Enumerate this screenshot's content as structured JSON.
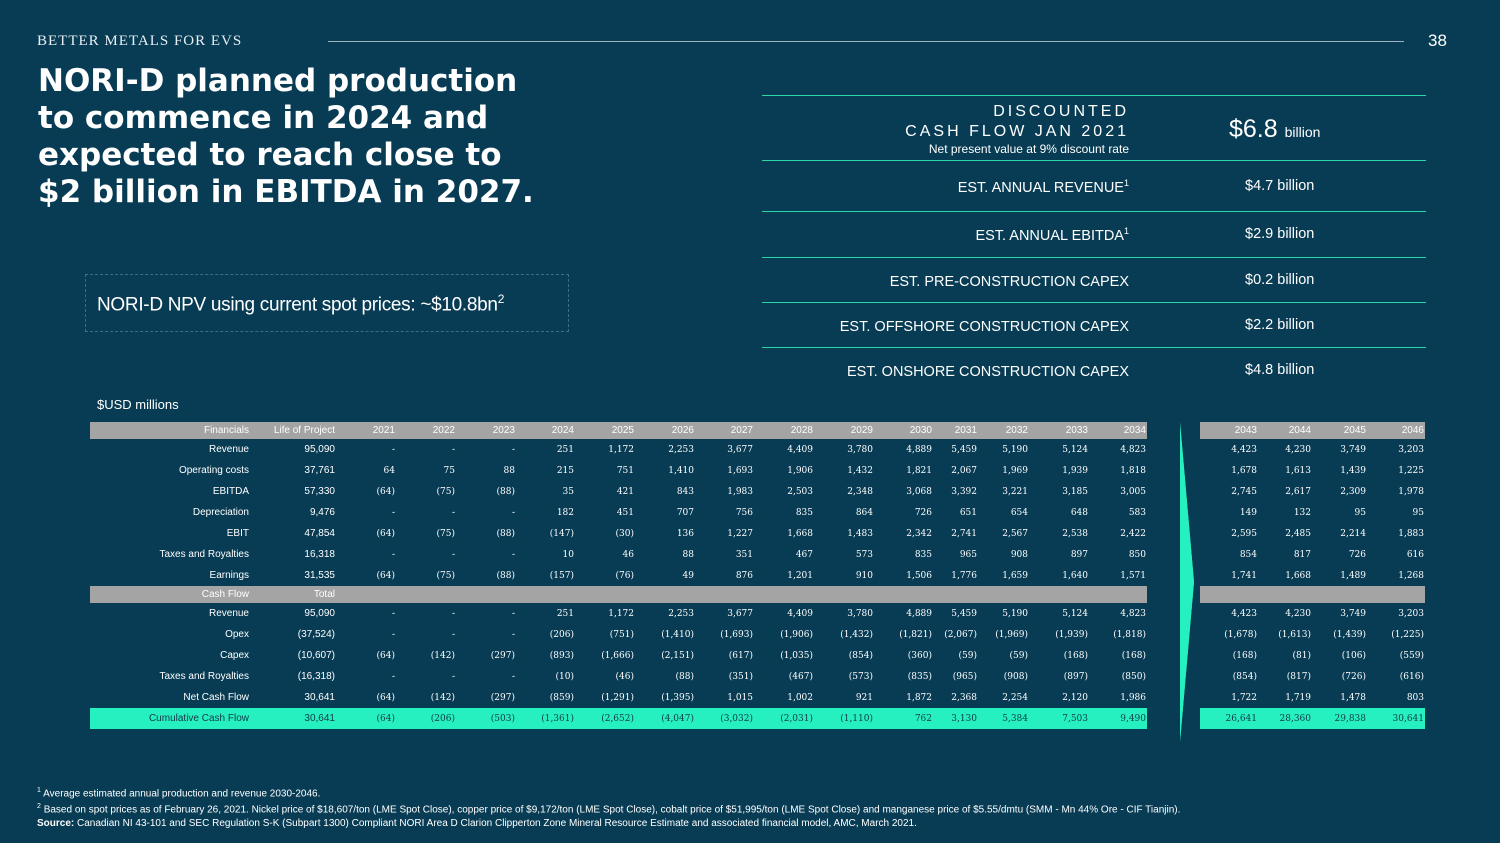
{
  "header": {
    "tagline": "BETTER METALS FOR EVS",
    "page_number": "38"
  },
  "headline": "NORI-D planned production to commence in 2024 and expected to reach close to $2 billion in EBITDA in 2027.",
  "npv_box": {
    "text": "NORI-D NPV using current spot prices: ~$10.8bn",
    "sup": "2"
  },
  "dcf": {
    "title_line1": "DISCOUNTED",
    "title_line2": "CASH FLOW JAN 2021",
    "subtitle": "Net present value at 9% discount rate",
    "value": "$6.8",
    "unit": "billion"
  },
  "metrics": [
    {
      "label": "EST. ANNUAL REVENUE",
      "sup": "1",
      "value": "$4.7 billion"
    },
    {
      "label": "EST. ANNUAL EBITDA",
      "sup": "1",
      "value": "$2.9 billion"
    },
    {
      "label": "EST. PRE-CONSTRUCTION CAPEX",
      "sup": "",
      "value": "$0.2 billion"
    },
    {
      "label": "EST. OFFSHORE CONSTRUCTION CAPEX",
      "sup": "",
      "value": "$2.2 billion"
    },
    {
      "label": "EST. ONSHORE CONSTRUCTION CAPEX",
      "sup": "",
      "value": "$4.8 billion"
    }
  ],
  "table": {
    "units_label": "$USD millions",
    "header1": [
      "Financials",
      "Life of Project",
      "2021",
      "2022",
      "2023",
      "2024",
      "2025",
      "2026",
      "2027",
      "2028",
      "2029",
      "2030",
      "2031",
      "2032",
      "2033",
      "2034",
      "2043",
      "2044",
      "2045",
      "2046"
    ],
    "financials": [
      [
        "Revenue",
        "95,090",
        "-",
        "-",
        "-",
        "251",
        "1,172",
        "2,253",
        "3,677",
        "4,409",
        "3,780",
        "4,889",
        "5,459",
        "5,190",
        "5,124",
        "4,823",
        "4,423",
        "4,230",
        "3,749",
        "3,203"
      ],
      [
        "Operating costs",
        "37,761",
        "64",
        "75",
        "88",
        "215",
        "751",
        "1,410",
        "1,693",
        "1,906",
        "1,432",
        "1,821",
        "2,067",
        "1,969",
        "1,939",
        "1,818",
        "1,678",
        "1,613",
        "1,439",
        "1,225"
      ],
      [
        "EBITDA",
        "57,330",
        "(64)",
        "(75)",
        "(88)",
        "35",
        "421",
        "843",
        "1,983",
        "2,503",
        "2,348",
        "3,068",
        "3,392",
        "3,221",
        "3,185",
        "3,005",
        "2,745",
        "2,617",
        "2,309",
        "1,978"
      ],
      [
        "Depreciation",
        "9,476",
        "-",
        "-",
        "-",
        "182",
        "451",
        "707",
        "756",
        "835",
        "864",
        "726",
        "651",
        "654",
        "648",
        "583",
        "149",
        "132",
        "95",
        "95"
      ],
      [
        "EBIT",
        "47,854",
        "(64)",
        "(75)",
        "(88)",
        "(147)",
        "(30)",
        "136",
        "1,227",
        "1,668",
        "1,483",
        "2,342",
        "2,741",
        "2,567",
        "2,538",
        "2,422",
        "2,595",
        "2,485",
        "2,214",
        "1,883"
      ],
      [
        "Taxes and Royalties",
        "16,318",
        "-",
        "-",
        "-",
        "10",
        "46",
        "88",
        "351",
        "467",
        "573",
        "835",
        "965",
        "908",
        "897",
        "850",
        "854",
        "817",
        "726",
        "616"
      ],
      [
        "Earnings",
        "31,535",
        "(64)",
        "(75)",
        "(88)",
        "(157)",
        "(76)",
        "49",
        "876",
        "1,201",
        "910",
        "1,506",
        "1,776",
        "1,659",
        "1,640",
        "1,571",
        "1,741",
        "1,668",
        "1,489",
        "1,268"
      ]
    ],
    "header2": [
      "Cash Flow",
      "Total"
    ],
    "cashflow": [
      [
        "Revenue",
        "95,090",
        "-",
        "-",
        "-",
        "251",
        "1,172",
        "2,253",
        "3,677",
        "4,409",
        "3,780",
        "4,889",
        "5,459",
        "5,190",
        "5,124",
        "4,823",
        "4,423",
        "4,230",
        "3,749",
        "3,203"
      ],
      [
        "Opex",
        "(37,524)",
        "-",
        "-",
        "-",
        "(206)",
        "(751)",
        "(1,410)",
        "(1,693)",
        "(1,906)",
        "(1,432)",
        "(1,821)",
        "(2,067)",
        "(1,969)",
        "(1,939)",
        "(1,818)",
        "(1,678)",
        "(1,613)",
        "(1,439)",
        "(1,225)"
      ],
      [
        "Capex",
        "(10,607)",
        "(64)",
        "(142)",
        "(297)",
        "(893)",
        "(1,666)",
        "(2,151)",
        "(617)",
        "(1,035)",
        "(854)",
        "(360)",
        "(59)",
        "(59)",
        "(168)",
        "(168)",
        "(168)",
        "(81)",
        "(106)",
        "(559)"
      ],
      [
        "Taxes and Royalties",
        "(16,318)",
        "-",
        "-",
        "-",
        "(10)",
        "(46)",
        "(88)",
        "(351)",
        "(467)",
        "(573)",
        "(835)",
        "(965)",
        "(908)",
        "(897)",
        "(850)",
        "(854)",
        "(817)",
        "(726)",
        "(616)"
      ],
      [
        "Net Cash Flow",
        "30,641",
        "(64)",
        "(142)",
        "(297)",
        "(859)",
        "(1,291)",
        "(1,395)",
        "1,015",
        "1,002",
        "921",
        "1,872",
        "2,368",
        "2,254",
        "2,120",
        "1,986",
        "1,722",
        "1,719",
        "1,478",
        "803"
      ]
    ],
    "cumulative": [
      "Cumulative Cash Flow",
      "30,641",
      "(64)",
      "(206)",
      "(503)",
      "(1,361)",
      "(2,652)",
      "(4,047)",
      "(3,032)",
      "(2,031)",
      "(1,110)",
      "762",
      "3,130",
      "5,384",
      "7,503",
      "9,490",
      "26,641",
      "28,360",
      "29,838",
      "30,641"
    ]
  },
  "footnotes": {
    "fn1_mark": "1",
    "fn1": "Average estimated annual production and revenue 2030-2046.",
    "fn2_mark": "2",
    "fn2": "Based on spot prices as of February 26, 2021. Nickel price of $18,607/ton (LME Spot Close), copper price of $9,172/ton (LME Spot Close), cobalt price of $51,995/ton (LME Spot Close) and manganese price of $5.55/dmtu (SMM - Mn 44% Ore - CIF Tianjin).",
    "source_label": "Source:",
    "source": "Canadian NI 43-101 and SEC Regulation S-K (Subpart 1300) Compliant NORI Area D Clarion Clipperton Zone Mineral Resource Estimate and associated financial model, AMC, March 2021."
  },
  "colors": {
    "background": "#083c54",
    "accent": "#2fd4a8",
    "highlight_row": "#27f0c0",
    "header_row": "#a4a4a4",
    "arrow": "#27f0c0"
  }
}
